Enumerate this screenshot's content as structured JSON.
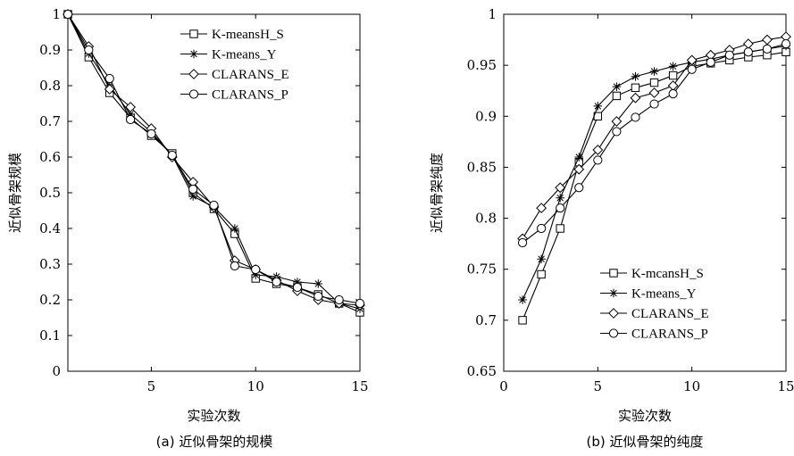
{
  "chart_data": [
    {
      "type": "line",
      "caption": "(a) 近似骨架的规模",
      "xlabel": "实验次数",
      "ylabel": "近似骨架规模",
      "xlim": [
        1,
        15
      ],
      "ylim": [
        0,
        1
      ],
      "xticks": [
        5,
        10,
        15
      ],
      "yticks": [
        0,
        0.1,
        0.2,
        0.3,
        0.4,
        0.5,
        0.6,
        0.7,
        0.8,
        0.9,
        1
      ],
      "xtick_labels": [
        "5",
        "10",
        "15"
      ],
      "ytick_labels": [
        "0",
        "0.1",
        "0.2",
        "0.3",
        "0.4",
        "0.5",
        "0.6",
        "0.7",
        "0.8",
        "0.9",
        "1"
      ],
      "legend_position": "top-right",
      "grid": false,
      "x": [
        1,
        2,
        3,
        4,
        5,
        6,
        7,
        8,
        9,
        10,
        11,
        12,
        13,
        14,
        15
      ],
      "series": [
        {
          "name": "K-meansH_S",
          "marker": "square",
          "values": [
            1.0,
            0.88,
            0.78,
            0.71,
            0.66,
            0.61,
            0.5,
            0.455,
            0.385,
            0.26,
            0.245,
            0.235,
            0.215,
            0.19,
            0.165
          ]
        },
        {
          "name": "K-means_Y",
          "marker": "star",
          "values": [
            1.0,
            0.89,
            0.8,
            0.72,
            0.67,
            0.605,
            0.49,
            0.46,
            0.4,
            0.27,
            0.265,
            0.25,
            0.245,
            0.19,
            0.175
          ]
        },
        {
          "name": "CLARANS_E",
          "marker": "diamond",
          "values": [
            1.0,
            0.91,
            0.79,
            0.74,
            0.68,
            0.6,
            0.53,
            0.46,
            0.31,
            0.285,
            0.255,
            0.225,
            0.2,
            0.19,
            0.185
          ]
        },
        {
          "name": "CLARANS_P",
          "marker": "circle",
          "values": [
            1.0,
            0.9,
            0.82,
            0.705,
            0.665,
            0.605,
            0.51,
            0.465,
            0.295,
            0.285,
            0.25,
            0.235,
            0.21,
            0.2,
            0.19
          ]
        }
      ]
    },
    {
      "type": "line",
      "caption": "(b) 近似骨架的纯度",
      "xlabel": "实验次数",
      "ylabel": "近似骨架纯度",
      "xlim": [
        0,
        15
      ],
      "ylim": [
        0.65,
        1
      ],
      "xticks": [
        0,
        5,
        10,
        15
      ],
      "yticks": [
        0.65,
        0.7,
        0.75,
        0.8,
        0.85,
        0.9,
        0.95,
        1
      ],
      "xtick_labels": [
        "0",
        "5",
        "10",
        "15"
      ],
      "ytick_labels": [
        "0.65",
        "0.7",
        "0.75",
        "0.8",
        "0.85",
        "0.9",
        "0.95",
        "1"
      ],
      "legend_position": "bottom-right",
      "grid": false,
      "x": [
        1,
        2,
        3,
        4,
        5,
        6,
        7,
        8,
        9,
        10,
        11,
        12,
        13,
        14,
        15
      ],
      "series": [
        {
          "name": "K-mcansH_S",
          "marker": "square",
          "values": [
            0.7,
            0.745,
            0.79,
            0.855,
            0.9,
            0.92,
            0.928,
            0.933,
            0.94,
            0.949,
            0.952,
            0.955,
            0.958,
            0.96,
            0.963
          ]
        },
        {
          "name": "K-means_Y",
          "marker": "star",
          "values": [
            0.72,
            0.76,
            0.82,
            0.86,
            0.91,
            0.929,
            0.939,
            0.944,
            0.949,
            0.953,
            0.956,
            0.96,
            0.963,
            0.966,
            0.969
          ]
        },
        {
          "name": "CLARANS_E",
          "marker": "diamond",
          "values": [
            0.78,
            0.81,
            0.83,
            0.848,
            0.867,
            0.895,
            0.918,
            0.923,
            0.93,
            0.955,
            0.96,
            0.965,
            0.971,
            0.975,
            0.978
          ]
        },
        {
          "name": "CLARANS_P",
          "marker": "circle",
          "values": [
            0.776,
            0.79,
            0.81,
            0.83,
            0.857,
            0.885,
            0.899,
            0.912,
            0.922,
            0.946,
            0.953,
            0.96,
            0.963,
            0.966,
            0.971
          ]
        }
      ]
    }
  ]
}
